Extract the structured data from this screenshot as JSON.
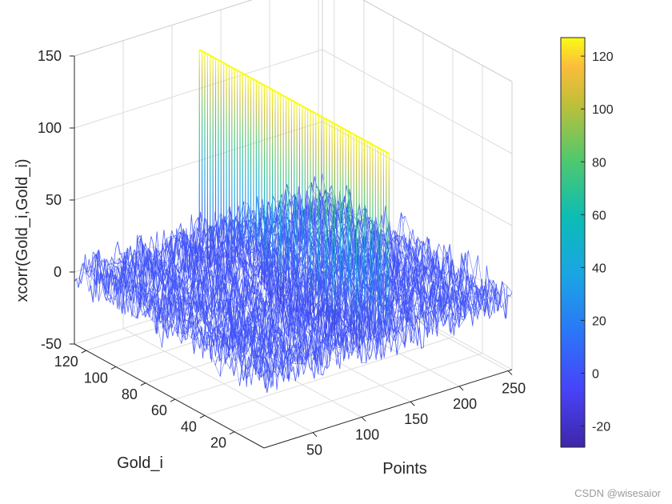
{
  "chart_data": {
    "type": "surface-mesh",
    "xlabel": "Points",
    "ylabel": "Gold_i",
    "zlabel": "xcorr(Gold_i,Gold_i)",
    "x_ticks": [
      "50",
      "100",
      "150",
      "200",
      "250"
    ],
    "y_ticks": [
      "20",
      "40",
      "60",
      "80",
      "100",
      "120"
    ],
    "z_ticks": [
      "-50",
      "0",
      "50",
      "100",
      "150"
    ],
    "xlim": [
      0,
      254
    ],
    "ylim": [
      0,
      128
    ],
    "zlim": [
      -50,
      150
    ],
    "grid": true,
    "colormap": "parula",
    "colorbar": {
      "min": -28,
      "max": 127,
      "ticks": [
        "-20",
        "0",
        "20",
        "40",
        "60",
        "80",
        "100",
        "120"
      ],
      "location": "right"
    },
    "peak": {
      "x": 128,
      "value": 127,
      "description": "autocorrelation peak across all Gold_i"
    },
    "noise_range": [
      -20,
      20
    ]
  },
  "watermark": "CSDN @wisesaior"
}
